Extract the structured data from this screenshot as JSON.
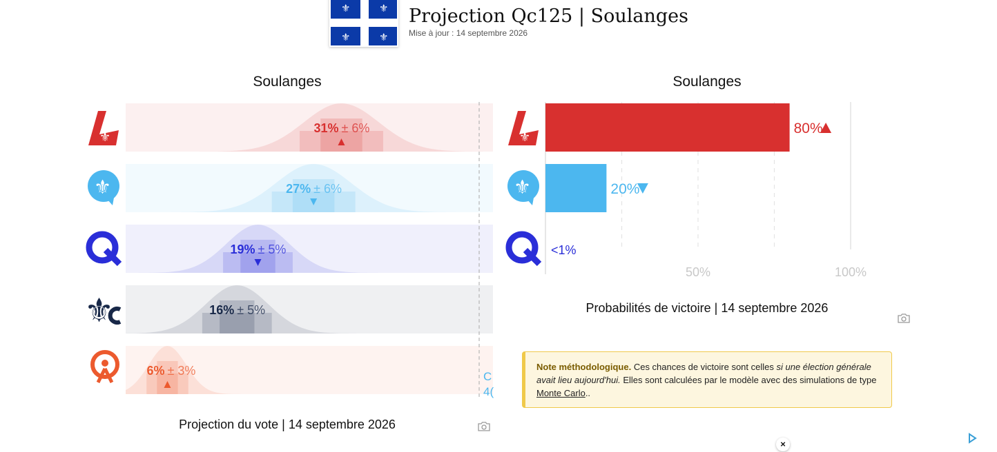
{
  "header": {
    "title": "Projection Qc125 | Soulanges",
    "updated": "Mise à jour : 14 septembre 2026",
    "flag_icon": "quebec-flag-icon"
  },
  "vote_panel": {
    "title": "Soulanges",
    "caption": "Projection du vote | 14 septembre 2026",
    "cutoff_text": [
      "C",
      "4("
    ]
  },
  "win_panel": {
    "title": "Soulanges",
    "caption": "Probabilités de victoire | 14 septembre 2026"
  },
  "colors": {
    "plq": "#d8302f",
    "pq": "#4cb7ef",
    "caq": "#2a2ed8",
    "pcq": "#182848",
    "qs": "#ec5a2e"
  },
  "chart_data": [
    {
      "type": "bar",
      "title": "Soulanges",
      "caption": "Projection du vote | 14 septembre 2026",
      "parties": [
        "plq",
        "pq",
        "caq",
        "pcq",
        "qs"
      ],
      "logos": [
        "plq-logo-icon",
        "pq-logo-icon",
        "caq-logo-icon",
        "pcq-logo-icon",
        "qs-logo-icon"
      ],
      "values": [
        31,
        27,
        19,
        16,
        6
      ],
      "margins": [
        6,
        6,
        5,
        5,
        3
      ],
      "labels": [
        "31%",
        "27%",
        "19%",
        "16%",
        "6%"
      ],
      "margin_labels": [
        "± 6%",
        "± 6%",
        "± 5%",
        "± 5%",
        "± 3%"
      ],
      "trend": [
        "up",
        "down",
        "down",
        "none",
        "up"
      ],
      "xlim": [
        0,
        50
      ]
    },
    {
      "type": "bar",
      "title": "Soulanges",
      "caption": "Probabilités de victoire | 14 septembre 2026",
      "parties": [
        "plq",
        "pq",
        "caq"
      ],
      "logos": [
        "plq-logo-icon",
        "pq-logo-icon",
        "caq-logo-icon"
      ],
      "values": [
        80,
        20,
        0.5
      ],
      "labels": [
        "80%",
        "20%",
        "<1%"
      ],
      "trend": [
        "up",
        "down",
        "none"
      ],
      "xlim": [
        0,
        100
      ],
      "ticks": [
        50,
        100
      ],
      "tick_labels": [
        "50%",
        "100%"
      ],
      "grid": true
    }
  ],
  "note": {
    "label": "Note méthodologique.",
    "text1": " Ces chances de victoire sont celles ",
    "italic": "si une élection générale avait lieu aujourd'hui.",
    "text2": " Elles sont calculées par le modèle avec des simulations de type ",
    "link": "Monte Carlo",
    "end": ".."
  },
  "close_label": "×"
}
